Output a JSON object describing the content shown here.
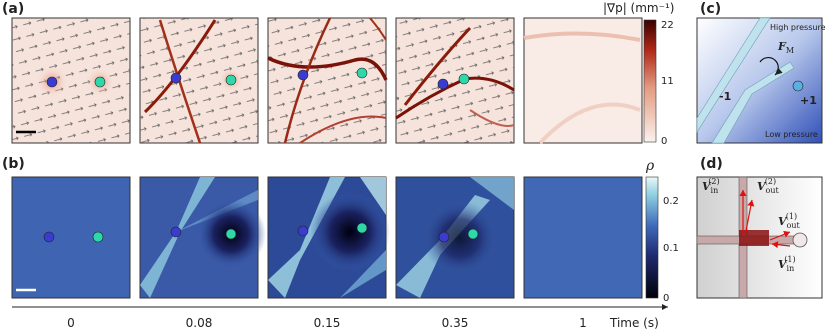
{
  "panels": {
    "a": {
      "label": "(a)",
      "colorbar": {
        "label": "|∇p| (mm⁻¹)",
        "ticks": [
          "22",
          "11",
          "0"
        ]
      }
    },
    "b": {
      "label": "(b)",
      "colorbar": {
        "label": "ρ",
        "ticks": [
          "0.2",
          "0.1",
          "0"
        ]
      }
    },
    "c": {
      "label": "(c)",
      "high": "High pressure",
      "low": "Low pressure",
      "force": {
        "symbol": "F",
        "sub": "M"
      },
      "minus": "-1",
      "plus": "+1"
    },
    "d": {
      "label": "(d)",
      "vectors": [
        {
          "symbol": "V",
          "sub": "in",
          "sup": "(2)"
        },
        {
          "symbol": "V",
          "sub": "out",
          "sup": "(2)"
        },
        {
          "symbol": "V",
          "sub": "out",
          "sup": "(1)"
        },
        {
          "symbol": "V",
          "sub": "in",
          "sup": "(1)"
        }
      ]
    }
  },
  "time_axis": {
    "labels": [
      "0",
      "0.08",
      "0.15",
      "0.35",
      "1"
    ],
    "title": "Time (s)"
  }
}
